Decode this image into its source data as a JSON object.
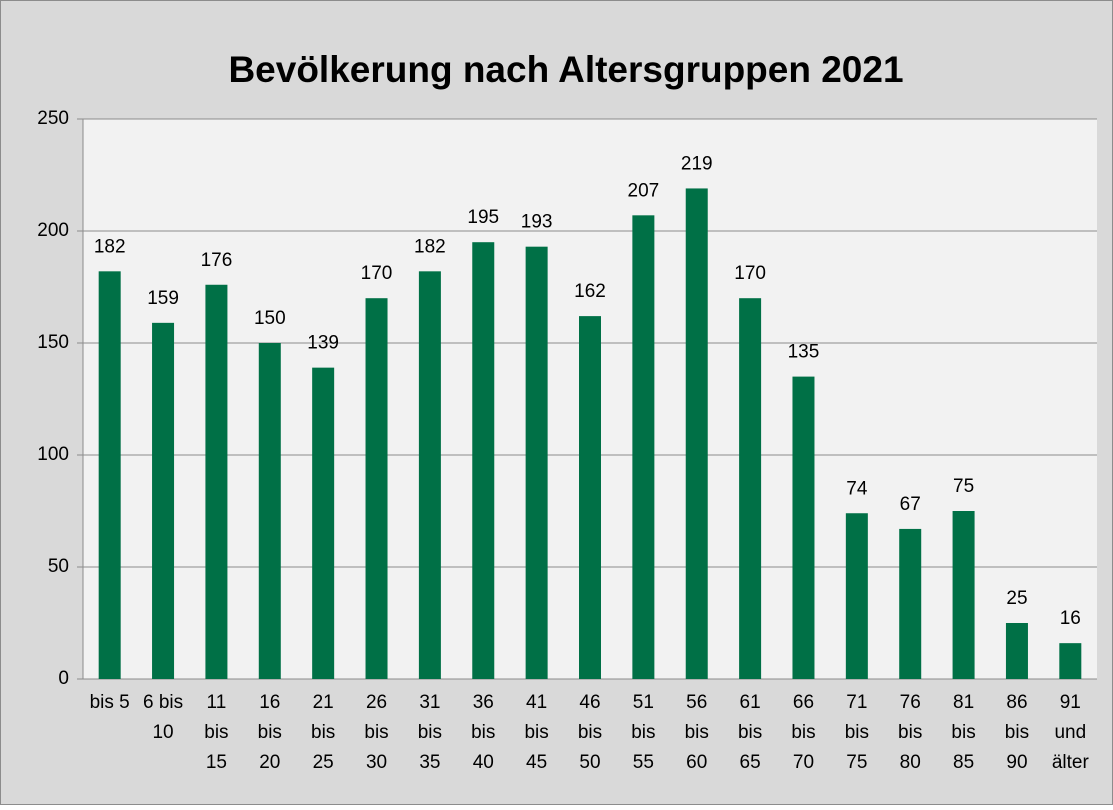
{
  "chart_data": {
    "type": "bar",
    "title": "Bevölkerung nach Altersgruppen 2021",
    "categories": [
      "bis 5",
      "6 bis 10",
      "11 bis 15",
      "16 bis 20",
      "21 bis 25",
      "26 bis 30",
      "31 bis 35",
      "36 bis 40",
      "41 bis 45",
      "46 bis 50",
      "51 bis 55",
      "56 bis 60",
      "61 bis 65",
      "66 bis 70",
      "71 bis 75",
      "76 bis 80",
      "81 bis 85",
      "86 bis 90",
      "91 und älter"
    ],
    "values": [
      182,
      159,
      176,
      150,
      139,
      170,
      182,
      195,
      193,
      162,
      207,
      219,
      170,
      135,
      74,
      67,
      75,
      25,
      16
    ],
    "color": "#007046",
    "ylim": [
      0,
      250
    ],
    "yticks": [
      0,
      50,
      100,
      150,
      200,
      250
    ],
    "grid": true
  }
}
